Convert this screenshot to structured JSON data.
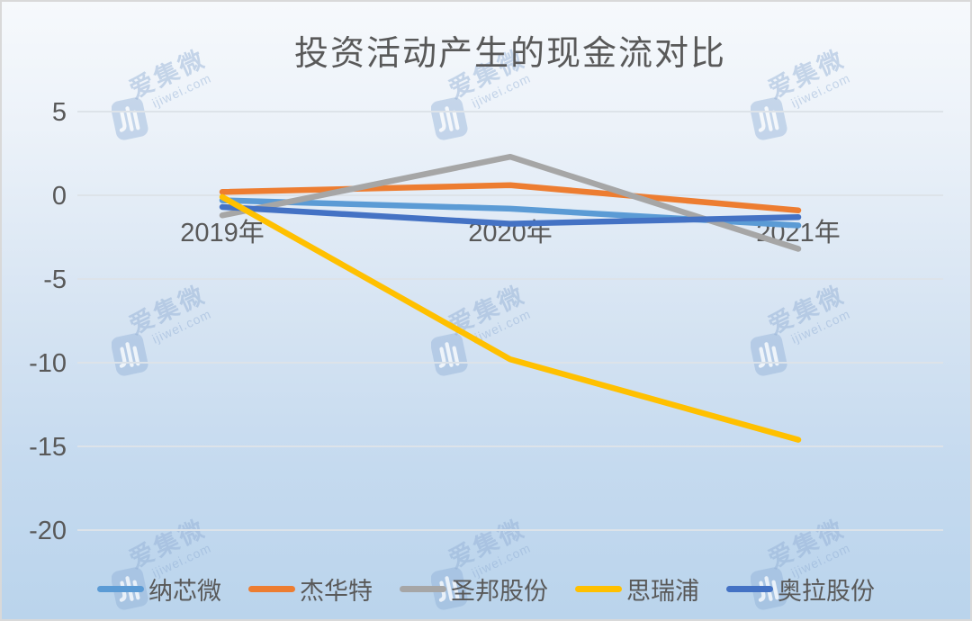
{
  "watermark": {
    "brand": "爱集微",
    "domain": "ijiwei.com"
  },
  "colors": {
    "background_top": "#F5F8FC",
    "background_bottom": "#BAD4EC",
    "text": "#595959",
    "gridline": "#DDE3E9",
    "border": "#D9D9D9",
    "watermark": "#8FB0D6"
  },
  "chart_data": {
    "type": "line",
    "title": "投资活动产生的现金流对比",
    "categories": [
      "2019年",
      "2020年",
      "2021年"
    ],
    "series": [
      {
        "name": "纳芯微",
        "color": "#5B9BD5",
        "values": [
          -0.3,
          -0.8,
          -1.8
        ]
      },
      {
        "name": "杰华特",
        "color": "#ED7D31",
        "values": [
          0.2,
          0.6,
          -0.9
        ]
      },
      {
        "name": "圣邦股份",
        "color": "#A6A6A6",
        "values": [
          -1.2,
          2.3,
          -3.2
        ]
      },
      {
        "name": "思瑞浦",
        "color": "#FFC000",
        "values": [
          -0.1,
          -9.8,
          -14.6
        ]
      },
      {
        "name": "奥拉股份",
        "color": "#4472C4",
        "values": [
          -0.7,
          -1.7,
          -1.3
        ]
      }
    ],
    "xlabel": "",
    "ylabel": "",
    "ylim": [
      -20,
      5
    ],
    "yticks": [
      5,
      0,
      -5,
      -10,
      -15,
      -20
    ],
    "grid": true,
    "legend_position": "bottom"
  }
}
